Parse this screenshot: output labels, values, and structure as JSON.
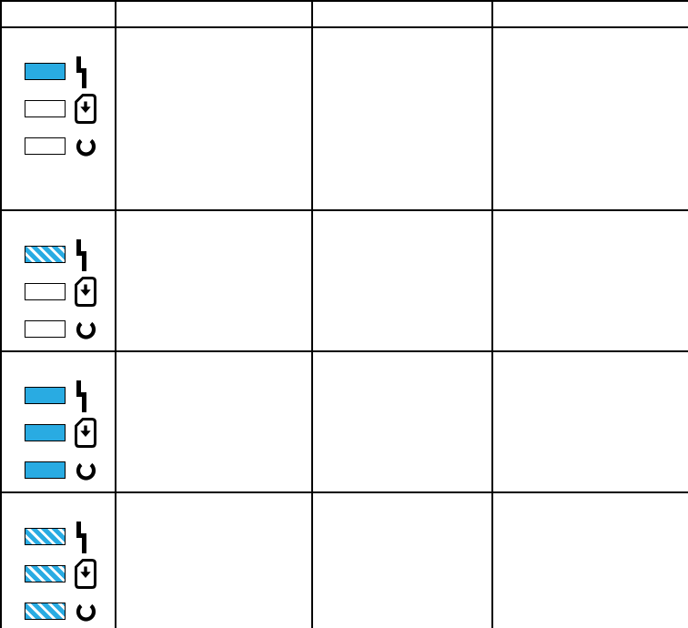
{
  "colors": {
    "led_on_fill": "#29abe2",
    "led_off_fill": "#ffffff",
    "led_border": "#000000",
    "icon_color": "#000000",
    "grid_line": "#000000",
    "page_background": "#ffffff"
  },
  "table": {
    "columns": [
      {
        "header": ""
      },
      {
        "header": ""
      },
      {
        "header": ""
      },
      {
        "header": ""
      }
    ],
    "rows": [
      {
        "led_panel": [
          {
            "icon": "power-icon",
            "state": "on"
          },
          {
            "icon": "sim-download-icon",
            "state": "off"
          },
          {
            "icon": "refresh-icon",
            "state": "off"
          }
        ],
        "cells": [
          "",
          "",
          ""
        ]
      },
      {
        "led_panel": [
          {
            "icon": "power-icon",
            "state": "blinking"
          },
          {
            "icon": "sim-download-icon",
            "state": "off"
          },
          {
            "icon": "refresh-icon",
            "state": "off"
          }
        ],
        "cells": [
          "",
          "",
          ""
        ]
      },
      {
        "led_panel": [
          {
            "icon": "power-icon",
            "state": "on"
          },
          {
            "icon": "sim-download-icon",
            "state": "on"
          },
          {
            "icon": "refresh-icon",
            "state": "on"
          }
        ],
        "cells": [
          "",
          "",
          ""
        ]
      },
      {
        "led_panel": [
          {
            "icon": "power-icon",
            "state": "blinking"
          },
          {
            "icon": "sim-download-icon",
            "state": "blinking"
          },
          {
            "icon": "refresh-icon",
            "state": "blinking"
          }
        ],
        "cells": [
          "",
          "",
          ""
        ]
      }
    ]
  }
}
